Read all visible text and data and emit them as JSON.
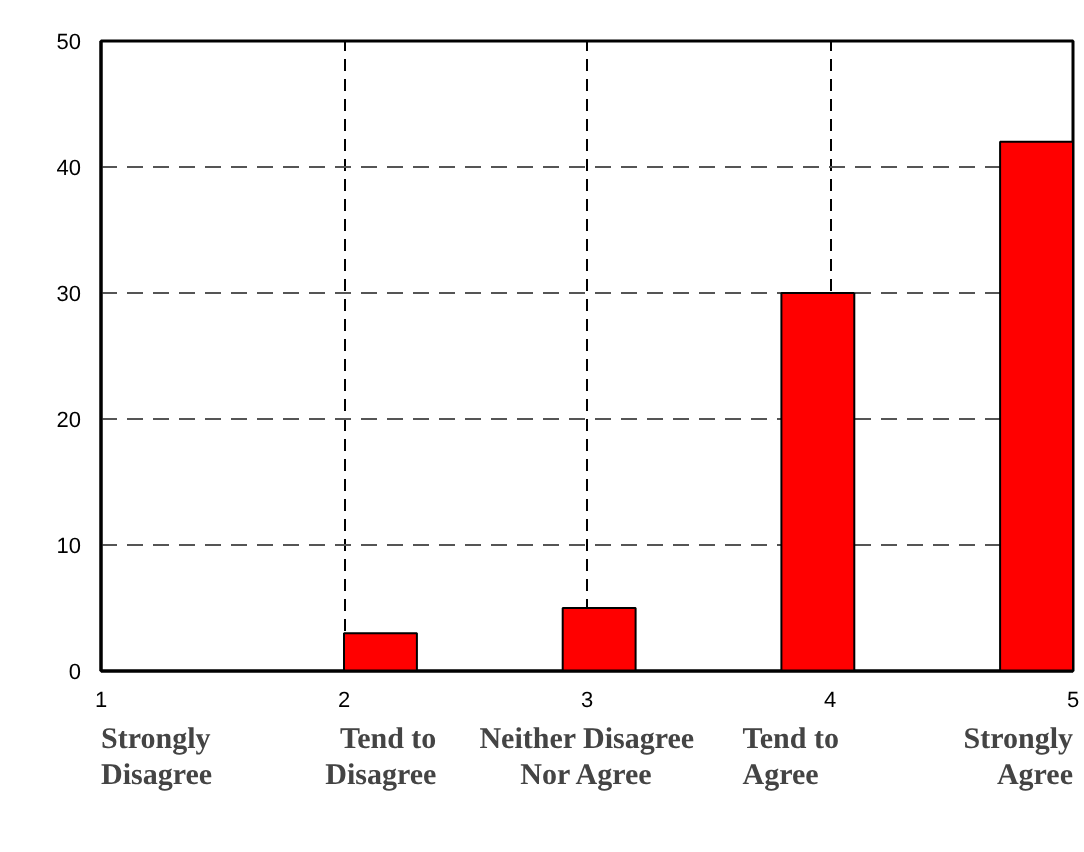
{
  "chart_data": {
    "type": "bar",
    "x": [
      1.25,
      2.15,
      3.05,
      3.95,
      4.85
    ],
    "values": [
      0,
      3,
      5,
      30,
      42
    ],
    "color": "#ff0000",
    "xlim": [
      1,
      5
    ],
    "xticks": [
      1,
      2,
      3,
      4,
      5
    ],
    "ylim": [
      0,
      50
    ],
    "yticks": [
      0,
      10,
      20,
      30,
      40,
      50
    ],
    "grid": true,
    "annotations": [
      "Strongly\nDisagree",
      "Tend to\nDisagree",
      "Neither Disagree\nNor Agree",
      "Tend to\nAgree",
      "Strongly\nAgree"
    ]
  }
}
